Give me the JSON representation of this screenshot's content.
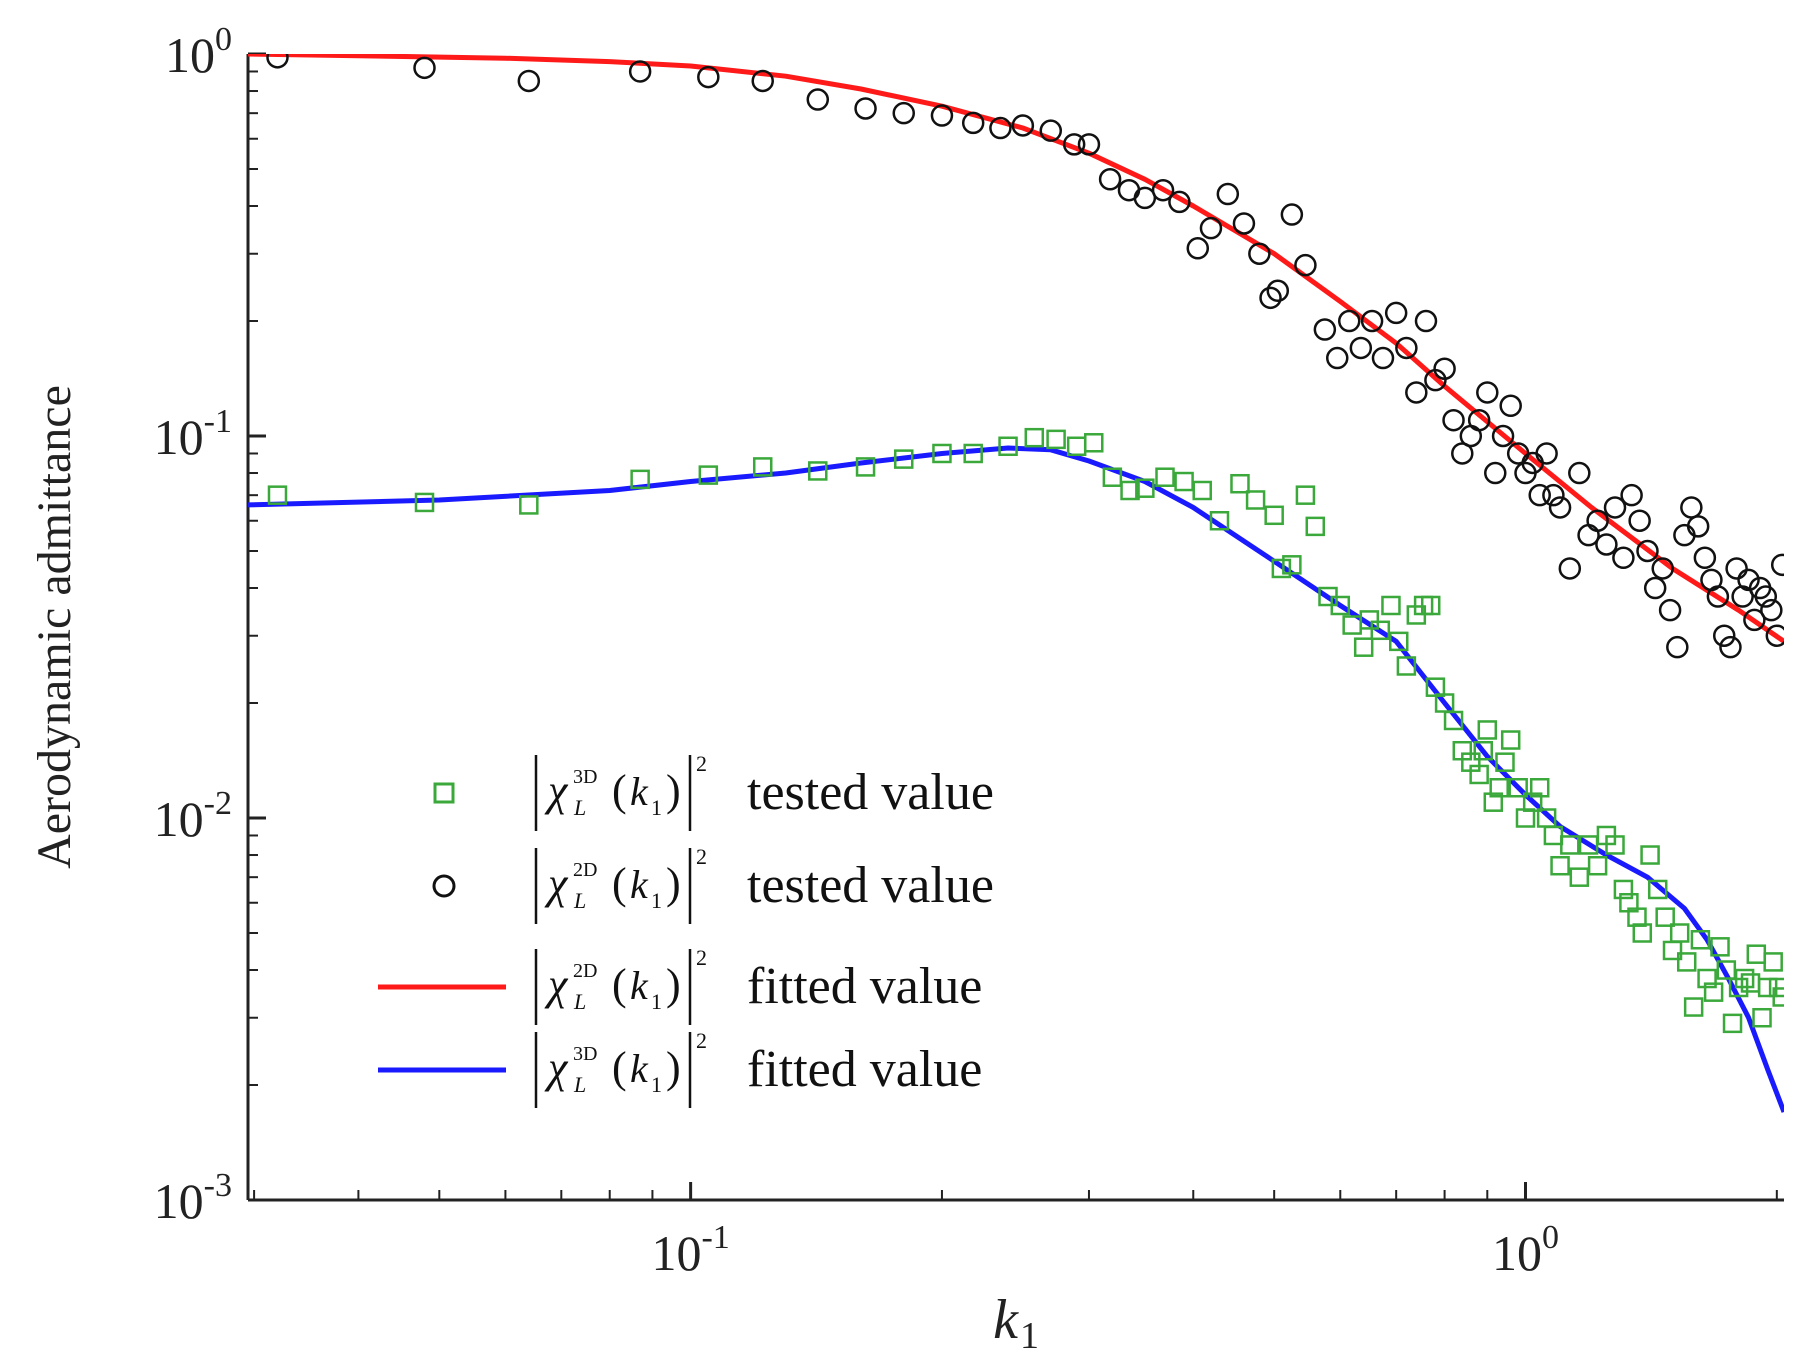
{
  "chart_data": {
    "type": "scatter",
    "title": "",
    "xlabel": "k",
    "xlabel_sub": "1",
    "ylabel": "Aerodynamic admittance",
    "xscale": "log",
    "yscale": "log",
    "xlim": [
      0.0295,
      2.04
    ],
    "ylim": [
      0.001,
      1.0
    ],
    "grid": false,
    "legend_position": "center-left",
    "x_ticks": [
      {
        "base": "10",
        "exp": "-1",
        "value": 0.1
      },
      {
        "base": "10",
        "exp": "0",
        "value": 1.0
      }
    ],
    "y_ticks": [
      {
        "base": "10",
        "exp": "0",
        "value": 1.0
      },
      {
        "base": "10",
        "exp": "-1",
        "value": 0.1
      },
      {
        "base": "10",
        "exp": "-2",
        "value": 0.01
      },
      {
        "base": "10",
        "exp": "-3",
        "value": 0.001
      }
    ],
    "legend": [
      {
        "marker": "square",
        "color": "#3aa83a",
        "symbol": "χ",
        "sub": "L",
        "sup": "3D",
        "arg": "k",
        "arg_sub": "1",
        "power": "2",
        "text": "tested value"
      },
      {
        "marker": "circle",
        "color": "#111111",
        "symbol": "χ",
        "sub": "L",
        "sup": "2D",
        "arg": "k",
        "arg_sub": "1",
        "power": "2",
        "text": "tested value"
      },
      {
        "marker": "line",
        "color": "#ff1a1a",
        "symbol": "χ",
        "sub": "L",
        "sup": "2D",
        "arg": "k",
        "arg_sub": "1",
        "power": "2",
        "text": "fitted value"
      },
      {
        "marker": "line",
        "color": "#1a1aff",
        "symbol": "χ",
        "sub": "L",
        "sup": "3D",
        "arg": "k",
        "arg_sub": "1",
        "power": "2",
        "text": "fitted value"
      }
    ],
    "series": [
      {
        "name": "|χL3D(k1)|² tested value",
        "kind": "scatter",
        "marker": "square",
        "color": "#3aa83a",
        "points": [
          [
            0.032,
            0.07
          ],
          [
            0.048,
            0.067
          ],
          [
            0.064,
            0.066
          ],
          [
            0.087,
            0.077
          ],
          [
            0.105,
            0.079
          ],
          [
            0.122,
            0.083
          ],
          [
            0.142,
            0.081
          ],
          [
            0.162,
            0.083
          ],
          [
            0.18,
            0.087
          ],
          [
            0.2,
            0.09
          ],
          [
            0.218,
            0.09
          ],
          [
            0.24,
            0.094
          ],
          [
            0.258,
            0.099
          ],
          [
            0.274,
            0.098
          ],
          [
            0.29,
            0.094
          ],
          [
            0.304,
            0.096
          ],
          [
            0.32,
            0.078
          ],
          [
            0.336,
            0.072
          ],
          [
            0.35,
            0.073
          ],
          [
            0.37,
            0.078
          ],
          [
            0.39,
            0.076
          ],
          [
            0.41,
            0.072
          ],
          [
            0.43,
            0.06
          ],
          [
            0.455,
            0.075
          ],
          [
            0.475,
            0.068
          ],
          [
            0.5,
            0.062
          ],
          [
            0.51,
            0.045
          ],
          [
            0.525,
            0.046
          ],
          [
            0.545,
            0.07
          ],
          [
            0.56,
            0.058
          ],
          [
            0.58,
            0.038
          ],
          [
            0.6,
            0.036
          ],
          [
            0.62,
            0.032
          ],
          [
            0.64,
            0.028
          ],
          [
            0.65,
            0.033
          ],
          [
            0.67,
            0.031
          ],
          [
            0.69,
            0.036
          ],
          [
            0.705,
            0.029
          ],
          [
            0.72,
            0.025
          ],
          [
            0.74,
            0.034
          ],
          [
            0.755,
            0.036
          ],
          [
            0.77,
            0.036
          ],
          [
            0.78,
            0.022
          ],
          [
            0.8,
            0.02
          ],
          [
            0.82,
            0.018
          ],
          [
            0.84,
            0.015
          ],
          [
            0.86,
            0.014
          ],
          [
            0.88,
            0.013
          ],
          [
            0.89,
            0.015
          ],
          [
            0.9,
            0.017
          ],
          [
            0.915,
            0.011
          ],
          [
            0.93,
            0.012
          ],
          [
            0.945,
            0.014
          ],
          [
            0.96,
            0.016
          ],
          [
            0.98,
            0.012
          ],
          [
            1.0,
            0.01
          ],
          [
            1.02,
            0.011
          ],
          [
            1.04,
            0.012
          ],
          [
            1.06,
            0.01
          ],
          [
            1.08,
            0.009
          ],
          [
            1.1,
            0.0075
          ],
          [
            1.13,
            0.0085
          ],
          [
            1.16,
            0.007
          ],
          [
            1.19,
            0.0085
          ],
          [
            1.22,
            0.0075
          ],
          [
            1.25,
            0.009
          ],
          [
            1.28,
            0.0085
          ],
          [
            1.31,
            0.0065
          ],
          [
            1.33,
            0.006
          ],
          [
            1.36,
            0.0055
          ],
          [
            1.38,
            0.005
          ],
          [
            1.41,
            0.008
          ],
          [
            1.44,
            0.0065
          ],
          [
            1.47,
            0.0055
          ],
          [
            1.5,
            0.0045
          ],
          [
            1.53,
            0.005
          ],
          [
            1.56,
            0.0042
          ],
          [
            1.59,
            0.0032
          ],
          [
            1.62,
            0.0048
          ],
          [
            1.65,
            0.0038
          ],
          [
            1.68,
            0.0035
          ],
          [
            1.71,
            0.0046
          ],
          [
            1.74,
            0.004
          ],
          [
            1.77,
            0.0029
          ],
          [
            1.8,
            0.0036
          ],
          [
            1.83,
            0.0038
          ],
          [
            1.86,
            0.0037
          ],
          [
            1.89,
            0.0044
          ],
          [
            1.92,
            0.003
          ],
          [
            1.95,
            0.0036
          ],
          [
            1.98,
            0.0042
          ],
          [
            2.01,
            0.0036
          ],
          [
            2.03,
            0.0034
          ]
        ]
      },
      {
        "name": "|χL2D(k1)|² tested value",
        "kind": "scatter",
        "marker": "circle",
        "color": "#111111",
        "points": [
          [
            0.032,
            0.98
          ],
          [
            0.048,
            0.92
          ],
          [
            0.064,
            0.85
          ],
          [
            0.087,
            0.9
          ],
          [
            0.105,
            0.87
          ],
          [
            0.122,
            0.85
          ],
          [
            0.142,
            0.76
          ],
          [
            0.162,
            0.72
          ],
          [
            0.18,
            0.7
          ],
          [
            0.2,
            0.69
          ],
          [
            0.218,
            0.66
          ],
          [
            0.235,
            0.64
          ],
          [
            0.25,
            0.65
          ],
          [
            0.27,
            0.63
          ],
          [
            0.288,
            0.58
          ],
          [
            0.3,
            0.58
          ],
          [
            0.318,
            0.47
          ],
          [
            0.335,
            0.44
          ],
          [
            0.35,
            0.42
          ],
          [
            0.368,
            0.44
          ],
          [
            0.385,
            0.41
          ],
          [
            0.405,
            0.31
          ],
          [
            0.42,
            0.35
          ],
          [
            0.44,
            0.43
          ],
          [
            0.46,
            0.36
          ],
          [
            0.48,
            0.3
          ],
          [
            0.495,
            0.23
          ],
          [
            0.505,
            0.24
          ],
          [
            0.525,
            0.38
          ],
          [
            0.545,
            0.28
          ],
          [
            0.575,
            0.19
          ],
          [
            0.595,
            0.16
          ],
          [
            0.615,
            0.2
          ],
          [
            0.635,
            0.17
          ],
          [
            0.655,
            0.2
          ],
          [
            0.675,
            0.16
          ],
          [
            0.7,
            0.21
          ],
          [
            0.72,
            0.17
          ],
          [
            0.74,
            0.13
          ],
          [
            0.76,
            0.2
          ],
          [
            0.78,
            0.14
          ],
          [
            0.8,
            0.15
          ],
          [
            0.82,
            0.11
          ],
          [
            0.84,
            0.09
          ],
          [
            0.86,
            0.1
          ],
          [
            0.88,
            0.11
          ],
          [
            0.9,
            0.13
          ],
          [
            0.92,
            0.08
          ],
          [
            0.94,
            0.1
          ],
          [
            0.96,
            0.12
          ],
          [
            0.98,
            0.09
          ],
          [
            1.0,
            0.08
          ],
          [
            1.02,
            0.085
          ],
          [
            1.04,
            0.07
          ],
          [
            1.06,
            0.09
          ],
          [
            1.08,
            0.07
          ],
          [
            1.1,
            0.065
          ],
          [
            1.13,
            0.045
          ],
          [
            1.16,
            0.08
          ],
          [
            1.19,
            0.055
          ],
          [
            1.22,
            0.06
          ],
          [
            1.25,
            0.052
          ],
          [
            1.28,
            0.065
          ],
          [
            1.31,
            0.048
          ],
          [
            1.34,
            0.07
          ],
          [
            1.37,
            0.06
          ],
          [
            1.4,
            0.05
          ],
          [
            1.43,
            0.04
          ],
          [
            1.46,
            0.045
          ],
          [
            1.49,
            0.035
          ],
          [
            1.52,
            0.028
          ],
          [
            1.55,
            0.055
          ],
          [
            1.58,
            0.065
          ],
          [
            1.61,
            0.058
          ],
          [
            1.64,
            0.048
          ],
          [
            1.67,
            0.042
          ],
          [
            1.7,
            0.038
          ],
          [
            1.73,
            0.03
          ],
          [
            1.76,
            0.028
          ],
          [
            1.79,
            0.045
          ],
          [
            1.82,
            0.038
          ],
          [
            1.85,
            0.042
          ],
          [
            1.88,
            0.033
          ],
          [
            1.91,
            0.04
          ],
          [
            1.94,
            0.038
          ],
          [
            1.97,
            0.035
          ],
          [
            2.0,
            0.03
          ],
          [
            2.03,
            0.046
          ]
        ]
      },
      {
        "name": "|χL2D(k1)|² fitted value",
        "kind": "line",
        "color": "#ff1a1a",
        "points": [
          [
            0.0295,
            1.0
          ],
          [
            0.04,
            0.99
          ],
          [
            0.06,
            0.975
          ],
          [
            0.08,
            0.955
          ],
          [
            0.1,
            0.93
          ],
          [
            0.13,
            0.875
          ],
          [
            0.16,
            0.81
          ],
          [
            0.2,
            0.73
          ],
          [
            0.25,
            0.64
          ],
          [
            0.3,
            0.55
          ],
          [
            0.35,
            0.47
          ],
          [
            0.4,
            0.4
          ],
          [
            0.5,
            0.3
          ],
          [
            0.6,
            0.225
          ],
          [
            0.7,
            0.175
          ],
          [
            0.8,
            0.135
          ],
          [
            1.0,
            0.09
          ],
          [
            1.2,
            0.065
          ],
          [
            1.5,
            0.045
          ],
          [
            1.8,
            0.035
          ],
          [
            2.04,
            0.029
          ]
        ]
      },
      {
        "name": "|χL3D(k1)|² fitted value",
        "kind": "line",
        "color": "#1a1aff",
        "points": [
          [
            0.0295,
            0.066
          ],
          [
            0.05,
            0.068
          ],
          [
            0.08,
            0.072
          ],
          [
            0.1,
            0.076
          ],
          [
            0.13,
            0.08
          ],
          [
            0.16,
            0.085
          ],
          [
            0.2,
            0.09
          ],
          [
            0.24,
            0.093
          ],
          [
            0.27,
            0.092
          ],
          [
            0.3,
            0.086
          ],
          [
            0.35,
            0.076
          ],
          [
            0.4,
            0.065
          ],
          [
            0.5,
            0.047
          ],
          [
            0.6,
            0.036
          ],
          [
            0.7,
            0.029
          ],
          [
            0.8,
            0.02
          ],
          [
            0.9,
            0.0145
          ],
          [
            1.0,
            0.0115
          ],
          [
            1.1,
            0.0095
          ],
          [
            1.25,
            0.008
          ],
          [
            1.4,
            0.007
          ],
          [
            1.55,
            0.0058
          ],
          [
            1.65,
            0.0048
          ],
          [
            1.75,
            0.0038
          ],
          [
            1.85,
            0.003
          ],
          [
            1.95,
            0.0022
          ],
          [
            2.04,
            0.0017
          ]
        ]
      }
    ]
  }
}
